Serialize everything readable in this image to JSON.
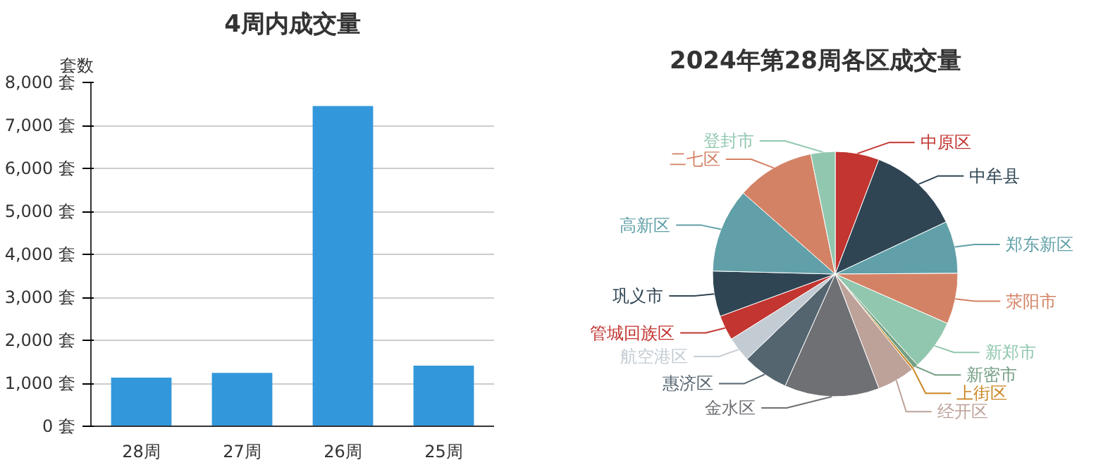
{
  "chart_data": [
    {
      "type": "bar",
      "title": "4周内成交量",
      "ylabel": "套数",
      "categories": [
        "28周",
        "27周",
        "26周",
        "25周"
      ],
      "values": [
        1130,
        1240,
        7450,
        1410
      ],
      "color": "#3398db",
      "ylim": [
        0,
        8000
      ],
      "yticks": [
        {
          "value": 0,
          "label": "0 套"
        },
        {
          "value": 1000,
          "label": "1,000 套"
        },
        {
          "value": 2000,
          "label": "2,000 套"
        },
        {
          "value": 3000,
          "label": "3,000 套"
        },
        {
          "value": 4000,
          "label": "4,000 套"
        },
        {
          "value": 5000,
          "label": "5,000 套"
        },
        {
          "value": 6000,
          "label": "6,000 套"
        },
        {
          "value": 7000,
          "label": "7,000 套"
        },
        {
          "value": 8000,
          "label": "8,000 套"
        }
      ],
      "grid": "y"
    },
    {
      "type": "pie",
      "title": "2024年第28周各区成交量",
      "categories": [
        "中原区",
        "中牟县",
        "郑东新区",
        "荥阳市",
        "新郑市",
        "新密市",
        "上街区",
        "经开区",
        "金水区",
        "惠济区",
        "航空港区",
        "管城回族区",
        "巩义市",
        "高新区",
        "二七区",
        "登封市"
      ],
      "values": [
        5.8,
        12.2,
        6.9,
        6.7,
        6.7,
        0.6,
        0.3,
        5.0,
        12.5,
        6.1,
        3.3,
        3.3,
        6.0,
        11.1,
        10.3,
        3.2
      ],
      "colors": [
        "#c23531",
        "#2f4554",
        "#61a0a8",
        "#d48265",
        "#91c7ae",
        "#749f83",
        "#ca8622",
        "#bda29a",
        "#6e7074",
        "#546570",
        "#c4ccd3",
        "#c23531",
        "#2f4554",
        "#61a0a8",
        "#d48265",
        "#91c7ae"
      ]
    }
  ]
}
